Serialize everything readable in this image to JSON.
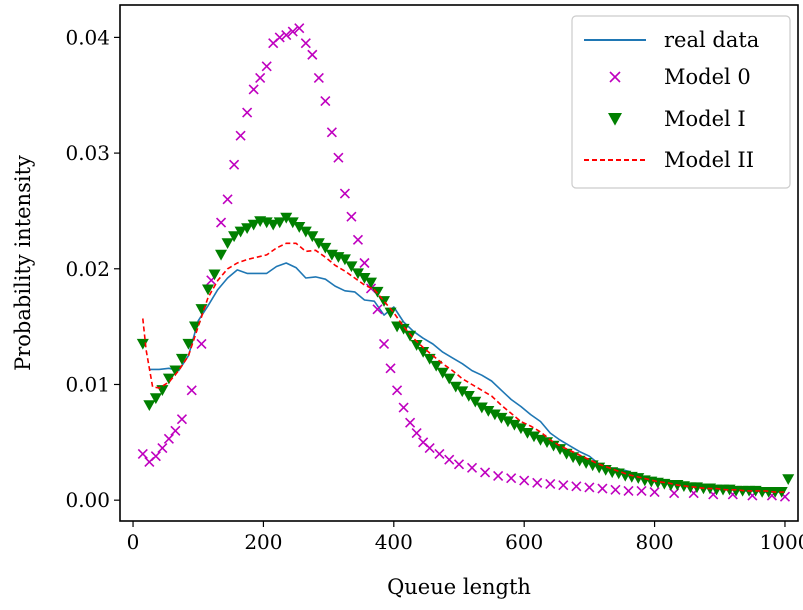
{
  "chart_data": {
    "type": "line",
    "xlabel": "Queue length",
    "ylabel": "Probability intensity",
    "xlim": [
      -20,
      1020
    ],
    "ylim": [
      -0.0018,
      0.0428
    ],
    "xticks": [
      0,
      200,
      400,
      600,
      800,
      1000
    ],
    "yticks": [
      0.0,
      0.01,
      0.02,
      0.03,
      0.04
    ],
    "xtick_labels": [
      "0",
      "200",
      "400",
      "600",
      "800",
      "1000"
    ],
    "ytick_labels": [
      "0.00",
      "0.01",
      "0.02",
      "0.03",
      "0.04"
    ],
    "grid": false,
    "legend_position": "top-right",
    "series": [
      {
        "name": "real data",
        "style": "line",
        "color": "#1f77b4",
        "x": [
          25,
          40,
          55,
          70,
          85,
          100,
          115,
          130,
          145,
          160,
          175,
          190,
          205,
          220,
          235,
          250,
          265,
          280,
          295,
          310,
          325,
          340,
          355,
          370,
          385,
          400,
          415,
          430,
          445,
          460,
          475,
          490,
          505,
          520,
          535,
          550,
          565,
          580,
          595,
          610,
          625,
          640,
          655,
          670,
          685,
          700,
          715,
          730,
          745,
          760,
          775,
          790,
          805,
          820,
          835,
          850,
          865,
          880,
          895,
          910,
          925,
          940,
          955,
          970,
          985,
          1000
        ],
        "y": [
          0.0113,
          0.0113,
          0.0114,
          0.0112,
          0.0125,
          0.0155,
          0.0168,
          0.0182,
          0.0192,
          0.0199,
          0.0196,
          0.0196,
          0.0196,
          0.0202,
          0.0205,
          0.0201,
          0.0192,
          0.0193,
          0.0191,
          0.0185,
          0.0181,
          0.018,
          0.0173,
          0.0172,
          0.016,
          0.0167,
          0.0154,
          0.0146,
          0.014,
          0.0135,
          0.0128,
          0.0123,
          0.0118,
          0.0112,
          0.0108,
          0.0103,
          0.0095,
          0.0087,
          0.0081,
          0.0074,
          0.0068,
          0.0058,
          0.0052,
          0.0047,
          0.0042,
          0.0038,
          0.0031,
          0.0028,
          0.0027,
          0.0025,
          0.002,
          0.0018,
          0.0016,
          0.0015,
          0.0014,
          0.0013,
          0.0012,
          0.0011,
          0.001,
          0.0009,
          0.0009,
          0.0008,
          0.0008,
          0.0007,
          0.0007,
          0.0007
        ]
      },
      {
        "name": "Model 0",
        "style": "marker-x",
        "color": "#bf00bf",
        "x": [
          15,
          25,
          35,
          45,
          55,
          65,
          75,
          90,
          105,
          120,
          135,
          145,
          155,
          165,
          175,
          185,
          195,
          205,
          215,
          225,
          235,
          245,
          255,
          265,
          275,
          285,
          295,
          305,
          315,
          325,
          335,
          345,
          355,
          365,
          375,
          385,
          395,
          405,
          415,
          425,
          435,
          445,
          455,
          470,
          485,
          500,
          520,
          540,
          560,
          580,
          600,
          620,
          640,
          660,
          680,
          700,
          720,
          740,
          760,
          780,
          800,
          830,
          860,
          890,
          920,
          950,
          980,
          1000
        ],
        "y": [
          0.004,
          0.0033,
          0.0038,
          0.0045,
          0.0053,
          0.006,
          0.007,
          0.0095,
          0.0135,
          0.019,
          0.024,
          0.026,
          0.029,
          0.0315,
          0.0335,
          0.0355,
          0.0365,
          0.0375,
          0.0395,
          0.04,
          0.0402,
          0.0405,
          0.0408,
          0.0395,
          0.0385,
          0.0365,
          0.0345,
          0.0318,
          0.0296,
          0.0265,
          0.0245,
          0.0225,
          0.0205,
          0.0183,
          0.0165,
          0.0135,
          0.0114,
          0.0095,
          0.008,
          0.0067,
          0.0058,
          0.005,
          0.0045,
          0.004,
          0.0035,
          0.0031,
          0.0028,
          0.0024,
          0.0021,
          0.0019,
          0.0017,
          0.0015,
          0.0014,
          0.0013,
          0.0012,
          0.0011,
          0.001,
          0.0009,
          0.0008,
          0.0008,
          0.0007,
          0.0006,
          0.0006,
          0.0005,
          0.0005,
          0.0004,
          0.0004,
          0.0003
        ]
      },
      {
        "name": "Model I",
        "style": "marker-triangle-down",
        "color": "#008000",
        "x": [
          15,
          25,
          35,
          45,
          55,
          65,
          75,
          85,
          95,
          105,
          115,
          125,
          135,
          145,
          155,
          165,
          175,
          185,
          195,
          205,
          215,
          225,
          235,
          245,
          255,
          265,
          275,
          285,
          295,
          305,
          315,
          325,
          335,
          345,
          355,
          365,
          375,
          385,
          395,
          405,
          415,
          425,
          435,
          445,
          455,
          465,
          475,
          485,
          495,
          505,
          515,
          525,
          535,
          545,
          555,
          565,
          575,
          585,
          595,
          605,
          615,
          625,
          635,
          645,
          655,
          665,
          675,
          685,
          695,
          705,
          715,
          725,
          735,
          745,
          755,
          765,
          775,
          785,
          795,
          805,
          815,
          825,
          835,
          845,
          855,
          865,
          875,
          885,
          895,
          905,
          915,
          925,
          935,
          945,
          955,
          965,
          975,
          985,
          995,
          1005
        ],
        "y": [
          0.0135,
          0.0082,
          0.0088,
          0.0095,
          0.0105,
          0.0112,
          0.0122,
          0.0135,
          0.015,
          0.0165,
          0.0182,
          0.0195,
          0.0212,
          0.0222,
          0.0228,
          0.0232,
          0.0235,
          0.0238,
          0.0241,
          0.024,
          0.0238,
          0.024,
          0.0244,
          0.024,
          0.0236,
          0.0232,
          0.0228,
          0.0222,
          0.0218,
          0.0212,
          0.021,
          0.0208,
          0.0202,
          0.0196,
          0.0192,
          0.0188,
          0.018,
          0.0172,
          0.0162,
          0.015,
          0.0148,
          0.0142,
          0.0134,
          0.0128,
          0.0122,
          0.0116,
          0.011,
          0.0105,
          0.0098,
          0.0094,
          0.009,
          0.0085,
          0.008,
          0.0077,
          0.0074,
          0.0071,
          0.0068,
          0.0065,
          0.0062,
          0.0058,
          0.0055,
          0.0052,
          0.005,
          0.0047,
          0.0044,
          0.004,
          0.0037,
          0.0034,
          0.0032,
          0.003,
          0.0028,
          0.0026,
          0.0024,
          0.0023,
          0.0021,
          0.002,
          0.0019,
          0.0017,
          0.0016,
          0.0015,
          0.0014,
          0.0013,
          0.0013,
          0.0012,
          0.0011,
          0.0011,
          0.001,
          0.001,
          0.0009,
          0.0009,
          0.0009,
          0.0008,
          0.0008,
          0.0008,
          0.0008,
          0.0007,
          0.0007,
          0.0007,
          0.0007,
          0.0018
        ]
      },
      {
        "name": "Model II",
        "style": "dashed-line",
        "color": "#ff0000",
        "x": [
          15,
          20,
          30,
          40,
          55,
          70,
          85,
          100,
          115,
          130,
          145,
          160,
          175,
          190,
          205,
          220,
          235,
          250,
          265,
          280,
          295,
          310,
          325,
          340,
          355,
          370,
          385,
          400,
          415,
          430,
          445,
          460,
          475,
          490,
          505,
          520,
          535,
          550,
          565,
          580,
          595,
          610,
          625,
          640,
          655,
          670,
          685,
          700,
          715,
          730,
          745,
          760,
          775,
          790,
          805,
          820,
          835,
          850,
          865,
          880,
          895,
          910,
          925,
          940,
          955,
          970,
          985,
          1000
        ],
        "y": [
          0.0157,
          0.013,
          0.0098,
          0.0097,
          0.0102,
          0.0112,
          0.0125,
          0.015,
          0.0175,
          0.019,
          0.02,
          0.0205,
          0.0208,
          0.021,
          0.0212,
          0.0218,
          0.0222,
          0.0222,
          0.0215,
          0.0216,
          0.021,
          0.0203,
          0.0198,
          0.0192,
          0.0186,
          0.0182,
          0.0172,
          0.0162,
          0.015,
          0.014,
          0.0132,
          0.0125,
          0.0118,
          0.0112,
          0.0105,
          0.01,
          0.0095,
          0.009,
          0.0082,
          0.0075,
          0.0068,
          0.0064,
          0.0059,
          0.0052,
          0.0047,
          0.0043,
          0.0039,
          0.0035,
          0.0031,
          0.0028,
          0.0025,
          0.0022,
          0.002,
          0.0018,
          0.0016,
          0.0015,
          0.0013,
          0.0012,
          0.0011,
          0.001,
          0.001,
          0.0009,
          0.0009,
          0.0008,
          0.0008,
          0.0008,
          0.0007,
          0.0007
        ]
      }
    ]
  }
}
